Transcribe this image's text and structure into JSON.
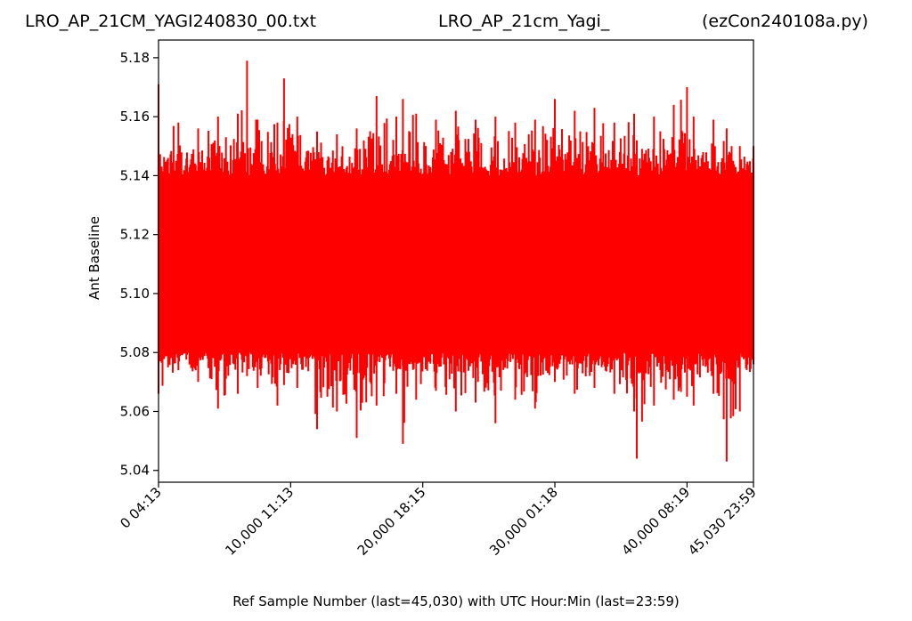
{
  "chart_data": {
    "type": "line",
    "title_left": "LRO_AP_21CM_YAGI240830_00.txt",
    "title_center": "LRO_AP_21cm_Yagi_",
    "title_right": "(ezCon240108a.py)",
    "xlabel": "Ref Sample Number (last=45,030) with UTC Hour:Min (last=23:59)",
    "ylabel": "Ant Baseline",
    "xlim": [
      0,
      45030
    ],
    "ylim": [
      5.036,
      5.186
    ],
    "grid": false,
    "legend": "none",
    "series_color": "#ff0000",
    "x_ticks": [
      {
        "value": 0,
        "label": "0  04:13"
      },
      {
        "value": 10000,
        "label": "10,000  11:13"
      },
      {
        "value": 20000,
        "label": "20,000  18:15"
      },
      {
        "value": 30000,
        "label": "30,000  01:18"
      },
      {
        "value": 40000,
        "label": "40,000  08:19"
      },
      {
        "value": 45030,
        "label": "45,030  23:59"
      }
    ],
    "y_ticks": [
      {
        "value": 5.04,
        "label": "5.04"
      },
      {
        "value": 5.06,
        "label": "5.06"
      },
      {
        "value": 5.08,
        "label": "5.08"
      },
      {
        "value": 5.1,
        "label": "5.10"
      },
      {
        "value": 5.12,
        "label": "5.12"
      },
      {
        "value": 5.14,
        "label": "5.14"
      },
      {
        "value": 5.16,
        "label": "5.16"
      },
      {
        "value": 5.18,
        "label": "5.18"
      }
    ],
    "series": [
      {
        "x": [
          0,
          1500,
          3000,
          4500,
          6000,
          6700,
          7500,
          9000,
          9500,
          10500,
          12000,
          13500,
          15000,
          16500,
          18000,
          18500,
          19500,
          21000,
          22500,
          24000,
          25500,
          27000,
          28500,
          30000,
          31500,
          33000,
          34500,
          36000,
          36200,
          37500,
          39000,
          40000,
          40500,
          42000,
          43000,
          44000,
          45030
        ],
        "max": [
          5.171,
          5.158,
          5.156,
          5.16,
          5.161,
          5.179,
          5.159,
          5.158,
          5.173,
          5.16,
          5.155,
          5.154,
          5.156,
          5.167,
          5.16,
          5.166,
          5.161,
          5.159,
          5.162,
          5.159,
          5.16,
          5.158,
          5.159,
          5.166,
          5.162,
          5.163,
          5.158,
          5.161,
          5.152,
          5.16,
          5.164,
          5.17,
          5.16,
          5.159,
          5.156,
          5.15,
          5.15
        ],
        "min": [
          5.066,
          5.074,
          5.07,
          5.061,
          5.066,
          5.072,
          5.068,
          5.062,
          5.069,
          5.068,
          5.054,
          5.06,
          5.051,
          5.062,
          5.066,
          5.049,
          5.064,
          5.067,
          5.06,
          5.063,
          5.056,
          5.064,
          5.061,
          5.07,
          5.066,
          5.068,
          5.066,
          5.06,
          5.044,
          5.062,
          5.064,
          5.065,
          5.062,
          5.066,
          5.043,
          5.06,
          5.076
        ],
        "band_high": 5.14,
        "band_low": 5.08
      }
    ]
  }
}
